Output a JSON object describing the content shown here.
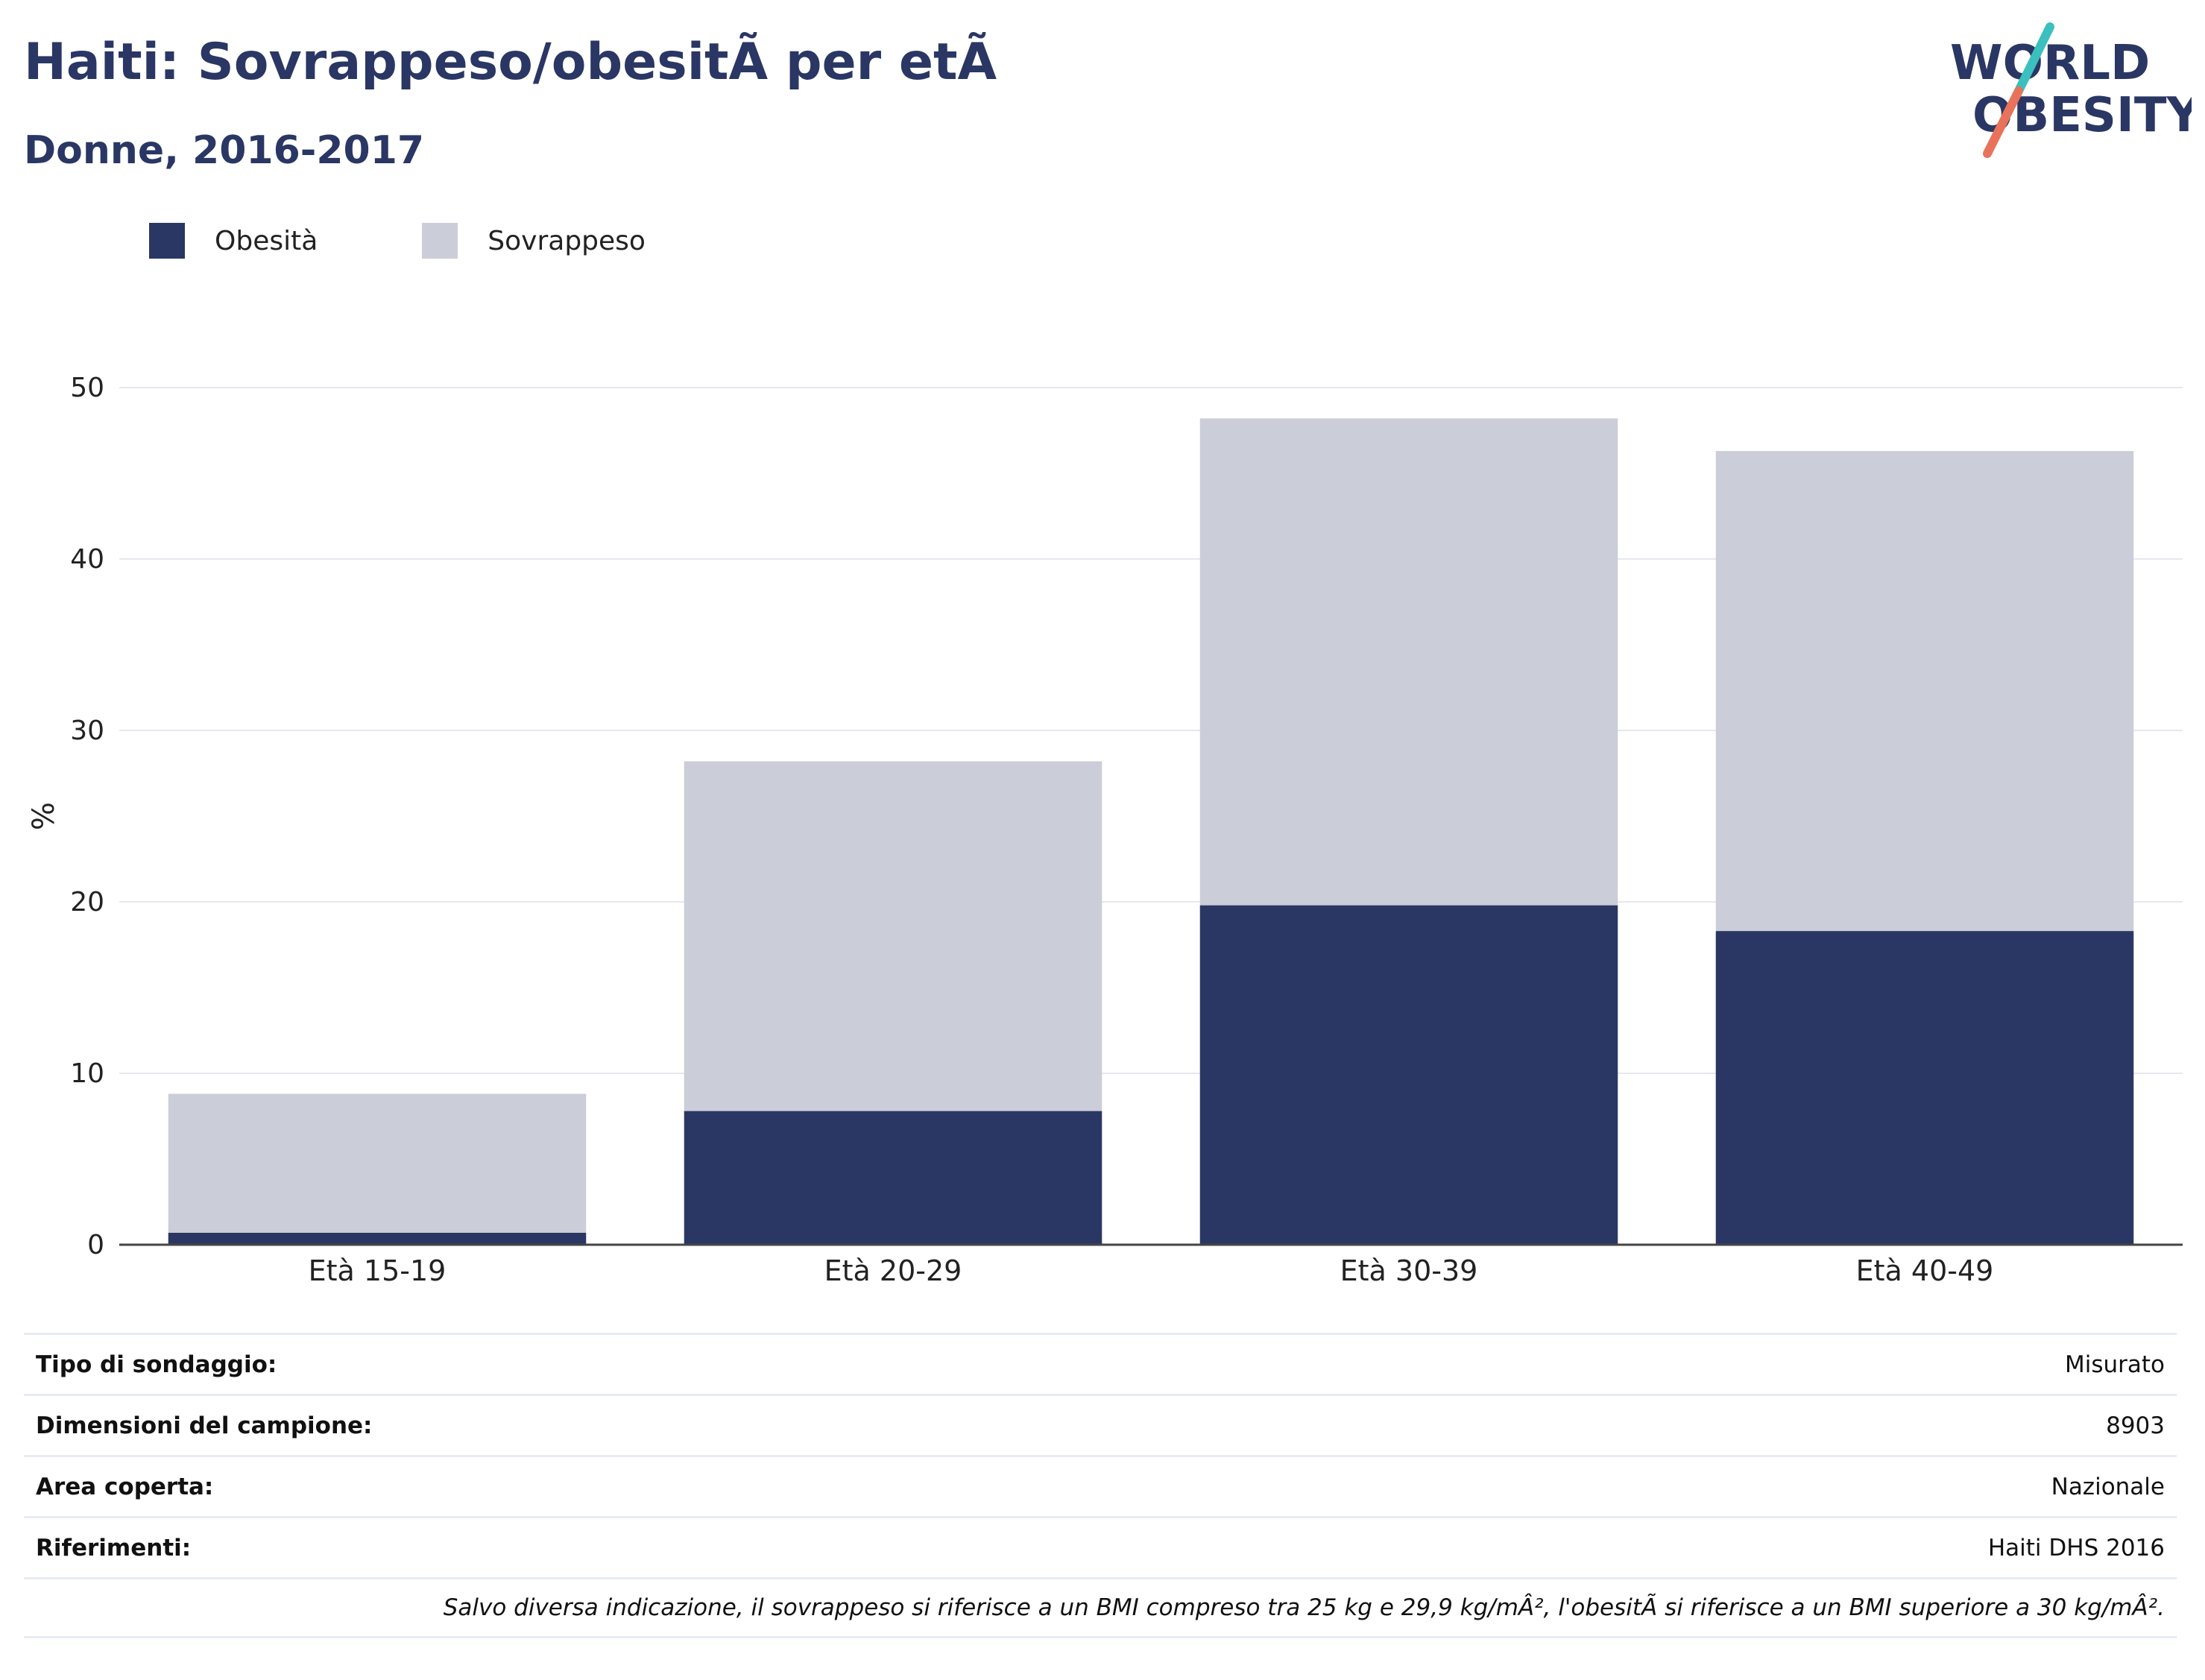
{
  "header": {
    "title": "Haiti: Sovrappeso/obesitÃ  per etÃ",
    "subtitle": "Donne, 2016-2017"
  },
  "logo": {
    "line1": "WORLD",
    "line2": "OBESITY",
    "colors": {
      "text": "#2a3764",
      "slash_top": "#3bbfbf",
      "slash_bottom": "#e8735a"
    }
  },
  "legend": {
    "items": [
      {
        "label": "Obesità",
        "color": "#2a3764"
      },
      {
        "label": "Sovrappeso",
        "color": "#cbcdd8"
      }
    ]
  },
  "chart_data": {
    "type": "bar",
    "stacked": true,
    "categories": [
      "Età 15-19",
      "Età 20-29",
      "Età 30-39",
      "Età 40-49"
    ],
    "series": [
      {
        "name": "Obesità",
        "color": "#2a3764",
        "values": [
          0.7,
          7.8,
          19.8,
          18.3
        ]
      },
      {
        "name": "Sovrappeso",
        "color": "#cbcdd8",
        "values": [
          8.1,
          20.4,
          28.4,
          28.0
        ]
      }
    ],
    "ylabel": "%",
    "ylim": [
      0,
      50
    ],
    "yticks": [
      0,
      10,
      20,
      30,
      40,
      50
    ],
    "grid": true,
    "legend_position": "top-left"
  },
  "info": {
    "rows": [
      {
        "label": "Tipo di sondaggio:",
        "value": "Misurato"
      },
      {
        "label": "Dimensioni del campione:",
        "value": "8903"
      },
      {
        "label": "Area coperta:",
        "value": "Nazionale"
      },
      {
        "label": "Riferimenti:",
        "value": "Haiti DHS 2016"
      }
    ],
    "note": "Salvo diversa indicazione, il sovrappeso si riferisce a un BMI compreso tra 25 kg e 29,9 kg/mÂ², l'obesitÃ  si riferisce a un BMI superiore a 30 kg/mÂ²."
  }
}
